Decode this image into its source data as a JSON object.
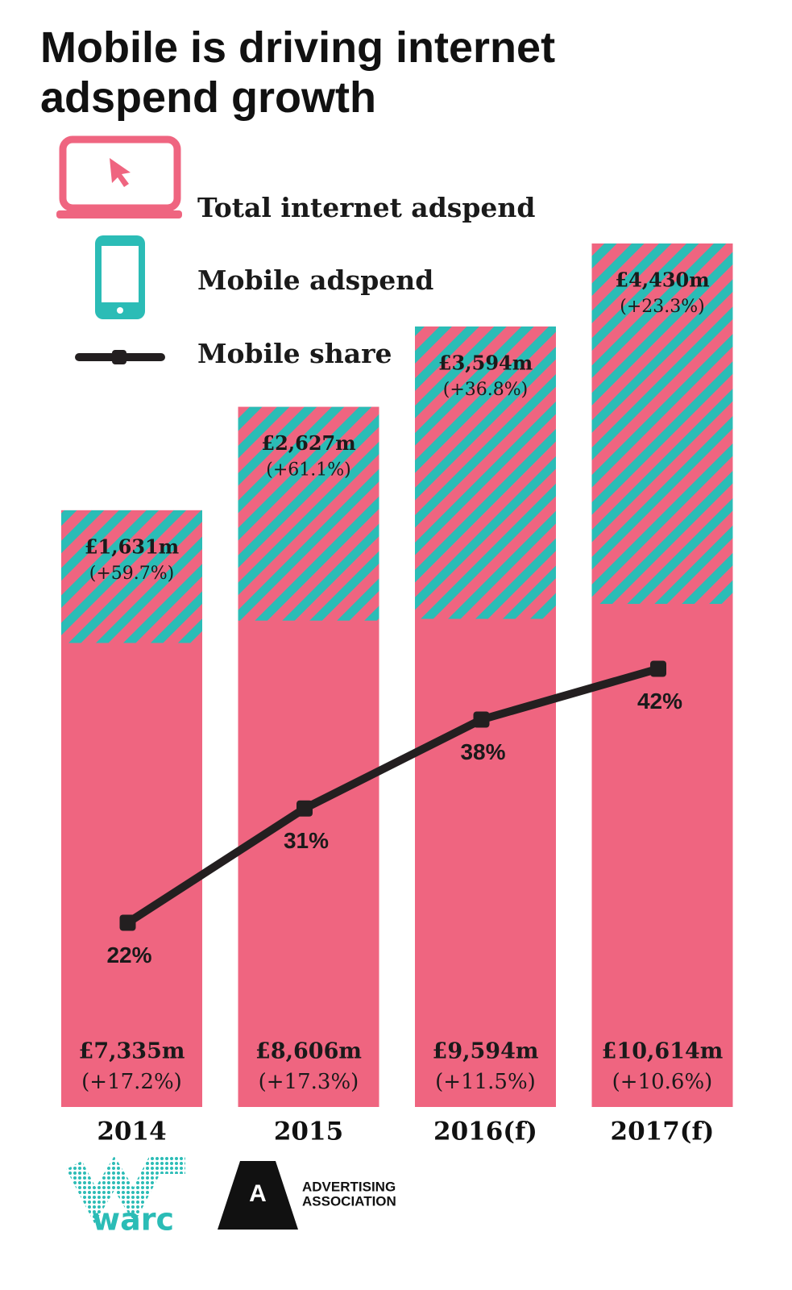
{
  "chart_data": {
    "type": "bar",
    "title": "Mobile is driving internet adspend growth",
    "categories": [
      "2014",
      "2015",
      "2016(f)",
      "2017(f)"
    ],
    "series": [
      {
        "name": "Total internet adspend",
        "color": "#ef6580",
        "values": [
          7335,
          8606,
          9594,
          10614
        ],
        "value_labels": [
          "£7,335m",
          "£8,606m",
          "£9,594m",
          "£10,614m"
        ],
        "growth_labels": [
          "(+17.2%)",
          "(+17.3%)",
          "(+11.5%)",
          "(+10.6%)"
        ]
      },
      {
        "name": "Mobile adspend",
        "color": "#2bbcb6",
        "values": [
          1631,
          2627,
          3594,
          4430
        ],
        "value_labels": [
          "£1,631m",
          "£2,627m",
          "£3,594m",
          "£4,430m"
        ],
        "growth_labels": [
          "(+59.7%)",
          "(+61.1%)",
          "(+36.8%)",
          "(+23.3%)"
        ]
      },
      {
        "name": "Mobile share",
        "color": "#231f20",
        "type": "line",
        "values": [
          22,
          31,
          38,
          42
        ],
        "value_labels": [
          "22%",
          "31%",
          "38%",
          "42%"
        ]
      }
    ]
  },
  "footer": {
    "warc": "warc",
    "aa_letter": "A",
    "aa_line1": "ADVERTISING",
    "aa_line2": "ASSOCIATION"
  }
}
